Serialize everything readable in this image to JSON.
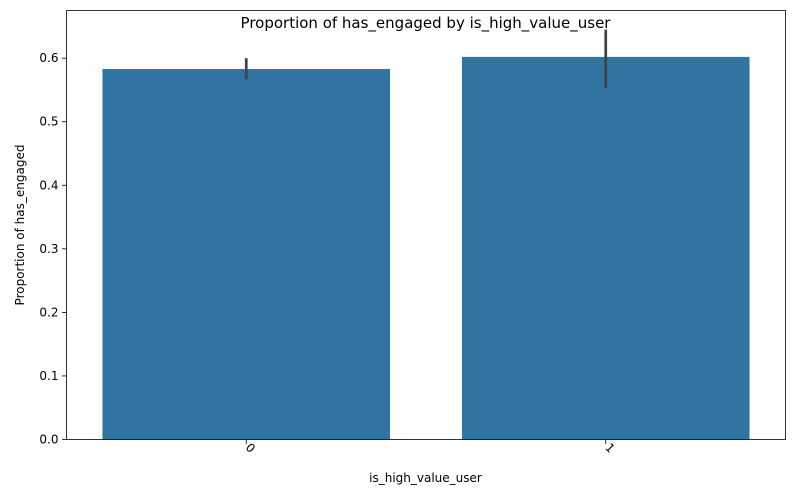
{
  "chart_data": {
    "type": "bar",
    "title": "Proportion of has_engaged by is_high_value_user",
    "xlabel": "is_high_value_user",
    "ylabel": "Proportion of has_engaged",
    "categories": [
      "0",
      "1"
    ],
    "values": [
      0.583,
      0.602
    ],
    "error_low": [
      0.567,
      0.553
    ],
    "error_high": [
      0.6,
      0.645
    ],
    "ylim": [
      0,
      0.675
    ],
    "yticks": [
      "0.0",
      "0.1",
      "0.2",
      "0.3",
      "0.4",
      "0.5",
      "0.6"
    ],
    "bar_color": "#3274a1",
    "error_color": "#424242",
    "grid": false,
    "x_tick_rotation": "45"
  }
}
